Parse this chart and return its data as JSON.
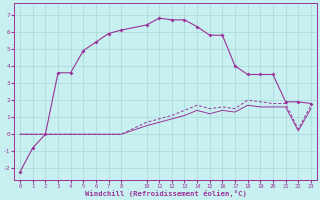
{
  "xlabel": "Windchill (Refroidissement éolien,°C)",
  "bg_color": "#c8f0f0",
  "line_color": "#993399",
  "grid_color": "#aadddd",
  "xlim": [
    -0.5,
    23.5
  ],
  "ylim": [
    -2.7,
    7.7
  ],
  "xticks": [
    0,
    1,
    2,
    3,
    4,
    5,
    6,
    7,
    8,
    10,
    11,
    12,
    13,
    14,
    15,
    16,
    17,
    18,
    19,
    20,
    21,
    22,
    23
  ],
  "yticks": [
    -2,
    -1,
    0,
    1,
    2,
    3,
    4,
    5,
    6,
    7
  ],
  "curve1_x": [
    0,
    1,
    2,
    3,
    4,
    5,
    6,
    7,
    8,
    10,
    11,
    12,
    13,
    14,
    15,
    16,
    17,
    18,
    19,
    20,
    21,
    22,
    23
  ],
  "curve1_y": [
    -2.2,
    -0.8,
    0.0,
    3.6,
    3.6,
    4.9,
    5.4,
    5.9,
    6.1,
    6.4,
    6.8,
    6.7,
    6.7,
    6.3,
    5.8,
    5.8,
    4.0,
    3.5,
    3.5,
    3.5,
    1.9,
    1.9,
    1.8
  ],
  "curve2_x": [
    0,
    2,
    8,
    10,
    11,
    12,
    13,
    14,
    15,
    16,
    17,
    18,
    19,
    20,
    21,
    22,
    23
  ],
  "curve2_y": [
    0.0,
    0.0,
    0.0,
    0.7,
    0.9,
    1.1,
    1.4,
    1.7,
    1.5,
    1.6,
    1.5,
    2.0,
    1.9,
    1.8,
    1.8,
    0.3,
    1.7
  ],
  "curve3_x": [
    0,
    2,
    8,
    10,
    11,
    12,
    13,
    14,
    15,
    16,
    17,
    18,
    19,
    20,
    21,
    22,
    23
  ],
  "curve3_y": [
    0.0,
    0.0,
    0.0,
    0.5,
    0.7,
    0.9,
    1.1,
    1.4,
    1.2,
    1.4,
    1.3,
    1.7,
    1.6,
    1.6,
    1.6,
    0.2,
    1.5
  ],
  "marker_x": [
    0,
    1,
    2,
    3,
    4,
    5,
    6,
    7,
    8,
    10,
    11,
    12,
    13,
    14,
    15,
    16,
    17,
    18,
    19,
    20,
    21,
    22,
    23
  ],
  "marker_y": [
    -2.2,
    -0.8,
    0.0,
    3.6,
    3.6,
    4.9,
    5.4,
    5.9,
    6.1,
    6.4,
    6.8,
    6.7,
    6.7,
    6.3,
    5.8,
    5.8,
    4.0,
    3.5,
    3.5,
    3.5,
    1.9,
    1.9,
    1.8
  ]
}
